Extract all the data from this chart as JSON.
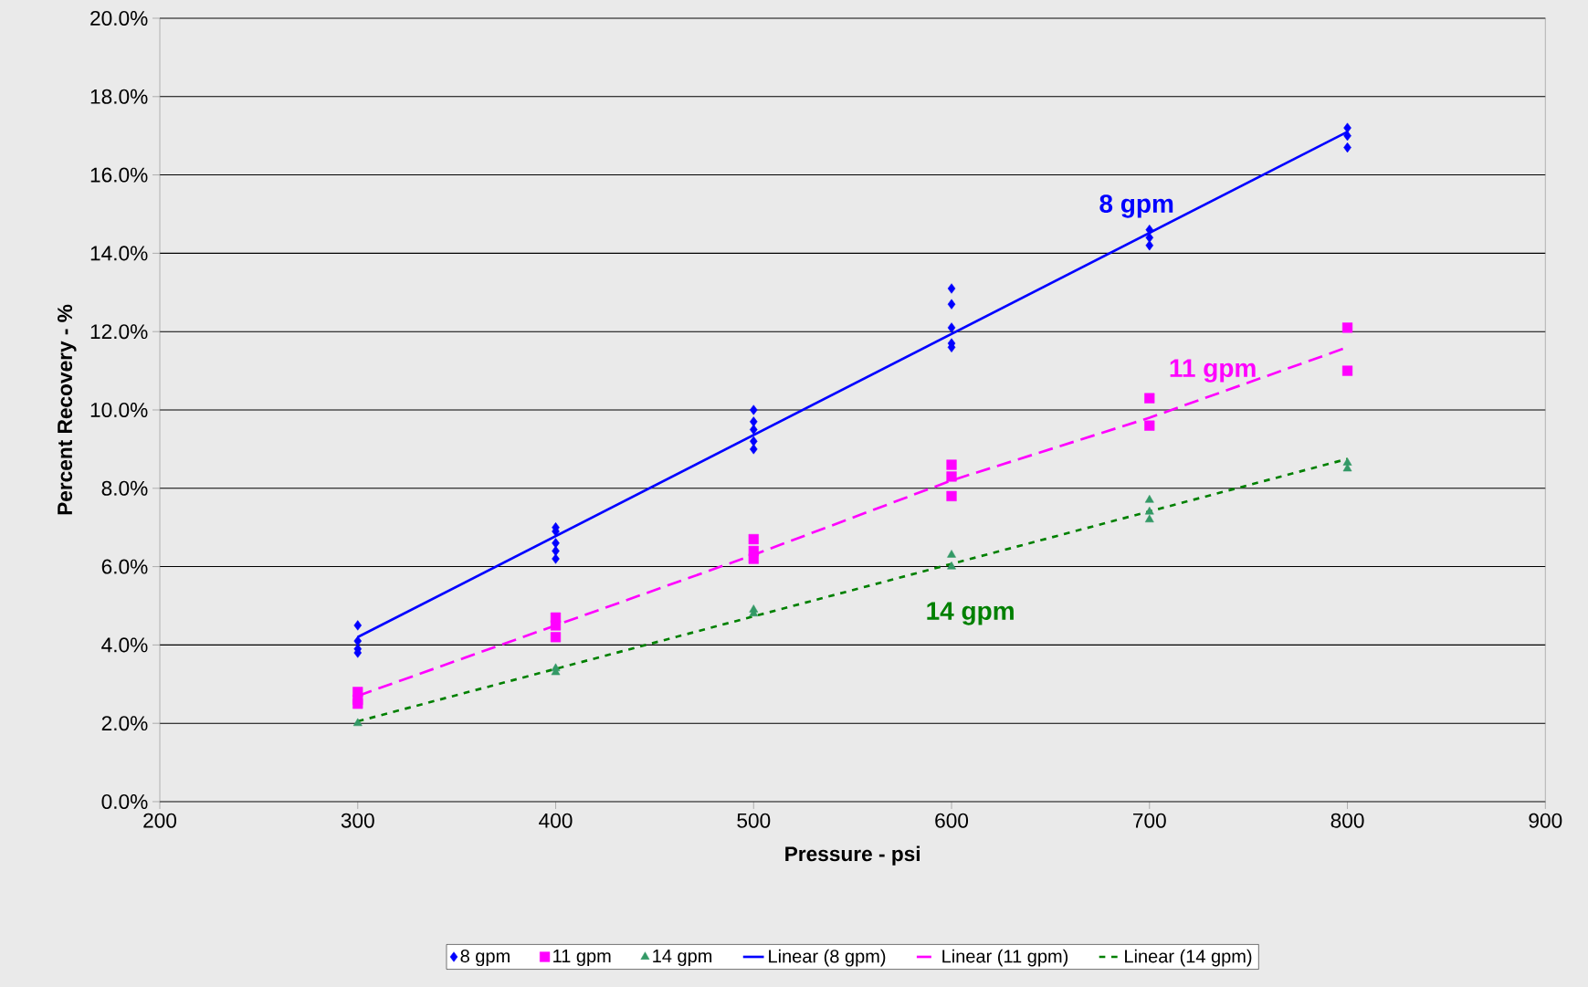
{
  "chart_data": {
    "type": "scatter",
    "xlabel": "Pressure - psi",
    "ylabel": "Percent Recovery - %",
    "xlim": [
      200,
      900
    ],
    "xticks": [
      200,
      300,
      400,
      500,
      600,
      700,
      800,
      900
    ],
    "ylim": [
      0,
      20
    ],
    "yticks": [
      {
        "value": 0,
        "label": "0.0%"
      },
      {
        "value": 2,
        "label": "2.0%"
      },
      {
        "value": 4,
        "label": "4.0%"
      },
      {
        "value": 6,
        "label": "6.0%"
      },
      {
        "value": 8,
        "label": "8.0%"
      },
      {
        "value": 10,
        "label": "10.0%"
      },
      {
        "value": 12,
        "label": "12.0%"
      },
      {
        "value": 14,
        "label": "14.0%"
      },
      {
        "value": 16,
        "label": "16.0%"
      },
      {
        "value": 18,
        "label": "18.0%"
      },
      {
        "value": 20,
        "label": "20.0%"
      }
    ],
    "grid": "y",
    "legend": "bottom",
    "series": [
      {
        "name": "8 gpm",
        "color": "#0000ff",
        "marker": "diamond",
        "x": [
          300,
          300,
          300,
          300,
          400,
          400,
          400,
          400,
          400,
          500,
          500,
          500,
          500,
          500,
          600,
          600,
          600,
          600,
          600,
          700,
          700,
          700,
          800,
          800,
          800
        ],
        "values": [
          4.5,
          4.1,
          3.9,
          3.8,
          7.0,
          6.9,
          6.6,
          6.4,
          6.2,
          10.0,
          9.7,
          9.5,
          9.2,
          9.0,
          13.1,
          12.7,
          12.1,
          11.7,
          11.6,
          14.6,
          14.4,
          14.2,
          17.2,
          17.0,
          16.7
        ]
      },
      {
        "name": "11 gpm",
        "color": "#ff00ff",
        "marker": "square",
        "x": [
          300,
          300,
          300,
          400,
          400,
          400,
          500,
          500,
          500,
          600,
          600,
          600,
          700,
          700,
          800,
          800
        ],
        "values": [
          2.8,
          2.6,
          2.5,
          4.7,
          4.5,
          4.2,
          6.7,
          6.4,
          6.2,
          8.6,
          8.3,
          7.8,
          10.3,
          9.6,
          12.1,
          11.0
        ]
      },
      {
        "name": "14 gpm",
        "color": "#339966",
        "marker": "triangle",
        "x": [
          300,
          400,
          400,
          500,
          500,
          600,
          600,
          700,
          700,
          700,
          800,
          800
        ],
        "values": [
          2.0,
          3.4,
          3.3,
          4.9,
          4.8,
          6.3,
          6.0,
          7.7,
          7.4,
          7.2,
          8.65,
          8.5
        ]
      },
      {
        "name": "Linear (8 gpm)",
        "type": "line",
        "color": "#0000ff",
        "marker": "none",
        "line_style": "solid",
        "x": [
          300,
          800
        ],
        "values": [
          4.2,
          17.1
        ]
      },
      {
        "name": "Linear (11 gpm)",
        "type": "line",
        "color": "#ff00ff",
        "marker": "none",
        "line_style": "dashed",
        "x": [
          300,
          400,
          500,
          600,
          700,
          800
        ],
        "values": [
          2.7,
          4.5,
          6.3,
          8.2,
          9.8,
          11.6
        ]
      },
      {
        "name": "Linear (14 gpm)",
        "type": "line",
        "color": "#008000",
        "marker": "none",
        "line_style": "dotted",
        "x": [
          300,
          800
        ],
        "values": [
          2.05,
          8.75
        ]
      }
    ],
    "annotations": [
      "8 gpm",
      "11 gpm",
      "14 gpm"
    ]
  }
}
